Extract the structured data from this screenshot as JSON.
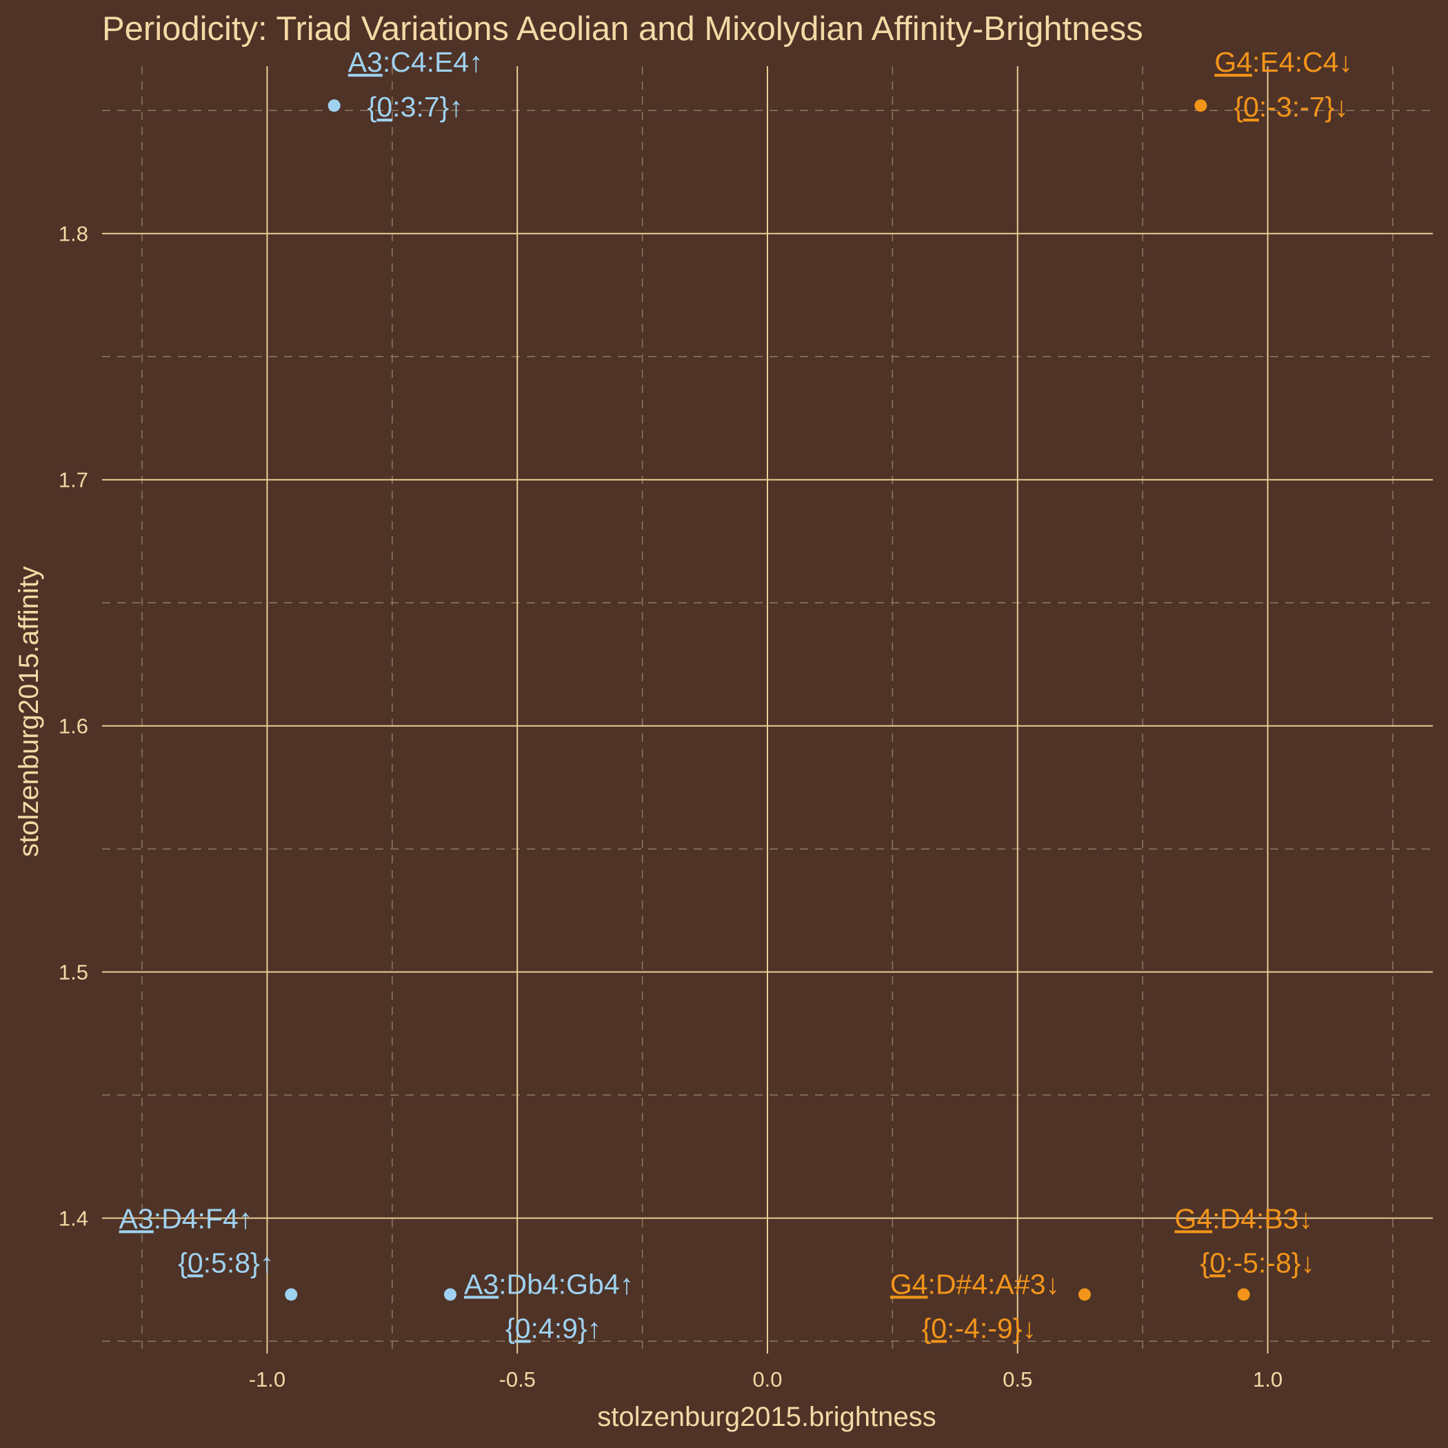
{
  "colors": {
    "background": "#4f3327",
    "text": "#f5d9a6",
    "major_grid": "#e9cf96",
    "minor_grid": "#8f7a63",
    "series_up": "#9fd2f0",
    "series_down": "#f2951a"
  },
  "chart_data": {
    "type": "scatter",
    "title": "Periodicity: Triad Variations Aeolian and Mixolydian Affinity-Brightness",
    "xlabel": "stolzenburg2015.brightness",
    "ylabel": "stolzenburg2015.affinity",
    "xlim": [
      -1.33,
      1.33
    ],
    "ylim": [
      1.345,
      1.868
    ],
    "x_ticks": [
      -1.0,
      -0.5,
      0.0,
      0.5,
      1.0
    ],
    "x_tick_labels": [
      "-1.0",
      "-0.5",
      "0.0",
      "0.5",
      "1.0"
    ],
    "y_ticks": [
      1.4,
      1.5,
      1.6,
      1.7,
      1.8
    ],
    "y_tick_labels": [
      "1.4",
      "1.5",
      "1.6",
      "1.7",
      "1.8"
    ],
    "grid": true,
    "points": [
      {
        "x": -0.866,
        "y": 1.852,
        "color": "series_up",
        "label_root": "A3",
        "label_rest": ":C4:E4",
        "interval_root": "0",
        "interval_rest": ":3:7}",
        "arrow": "↑",
        "anchor": "ne"
      },
      {
        "x": -0.952,
        "y": 1.369,
        "color": "series_up",
        "label_root": "A3",
        "label_rest": ":D4:F4",
        "interval_root": "0",
        "interval_rest": ":5:8}",
        "arrow": "↑",
        "anchor": "nw"
      },
      {
        "x": -0.634,
        "y": 1.369,
        "color": "series_up",
        "label_root": "A3",
        "label_rest": ":Db4:Gb4",
        "interval_root": "0",
        "interval_rest": ":4:9}",
        "arrow": "↑",
        "anchor": "e"
      },
      {
        "x": 0.866,
        "y": 1.852,
        "color": "series_down",
        "label_root": "G4",
        "label_rest": ":E4:C4",
        "interval_root": "0",
        "interval_rest": ":-3:-7}",
        "arrow": "↓",
        "anchor": "ne"
      },
      {
        "x": 0.952,
        "y": 1.369,
        "color": "series_down",
        "label_root": "G4",
        "label_rest": ":D4:B3",
        "interval_root": "0",
        "interval_rest": ":-5:-8}",
        "arrow": "↓",
        "anchor": "n"
      },
      {
        "x": 0.634,
        "y": 1.369,
        "color": "series_down",
        "label_root": "G4",
        "label_rest": ":D#4:A#3",
        "interval_root": "0",
        "interval_rest": ":-4:-9}",
        "arrow": "↓",
        "anchor": "w"
      }
    ]
  }
}
